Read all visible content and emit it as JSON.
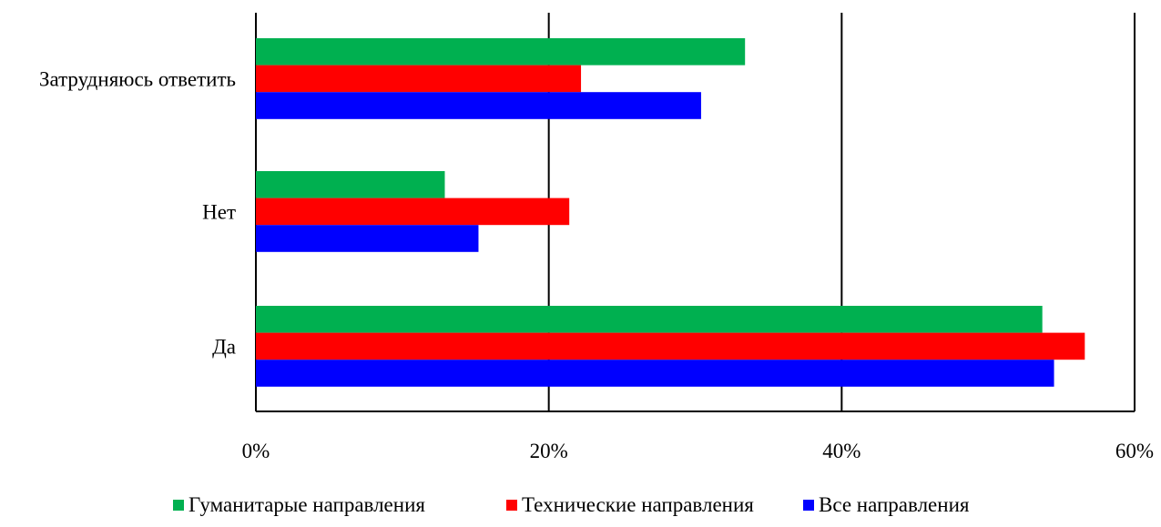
{
  "chart_data": {
    "type": "bar",
    "orientation": "horizontal",
    "title": "",
    "xlabel": "",
    "ylabel": "",
    "categories": [
      "Затрудняюсь ответить",
      "Нет",
      "Да"
    ],
    "series": [
      {
        "name": "Гуманитарые направления",
        "color": "#00b050",
        "values": [
          0.334,
          0.129,
          0.537
        ]
      },
      {
        "name": "Технические направления",
        "color": "#ff0000",
        "values": [
          0.222,
          0.214,
          0.566
        ]
      },
      {
        "name": "Все направления",
        "color": "#0000ff",
        "values": [
          0.304,
          0.152,
          0.545
        ]
      }
    ],
    "xlim": [
      0,
      0.6
    ],
    "xticks": [
      0,
      0.2,
      0.4,
      0.6
    ],
    "xtick_labels": [
      "0%",
      "20%",
      "40%",
      "60%"
    ],
    "grid": "vertical",
    "legend": "bottom"
  }
}
